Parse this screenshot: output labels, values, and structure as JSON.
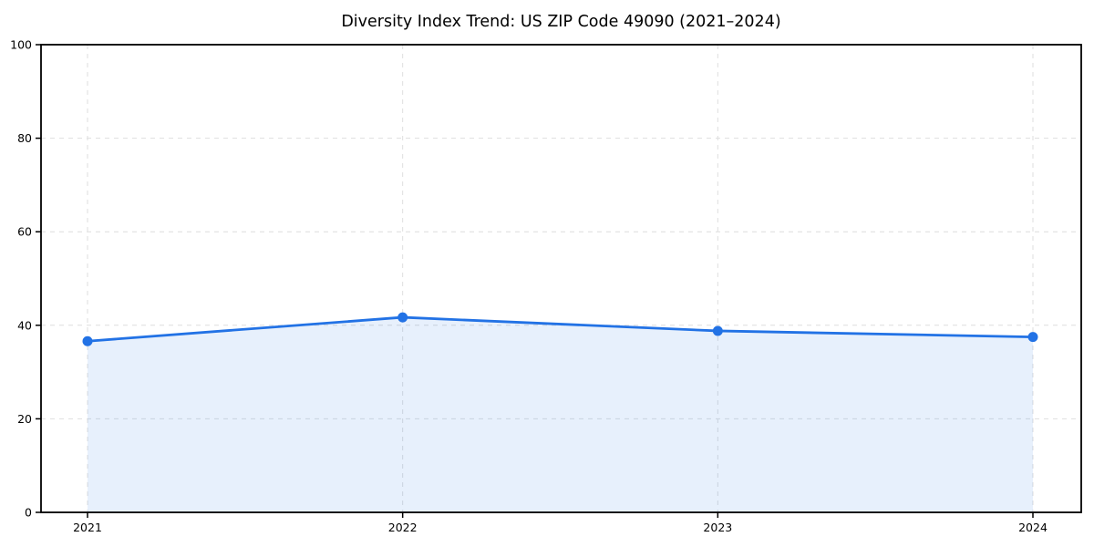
{
  "figure": {
    "background": "#ffffff"
  },
  "chart_data": {
    "type": "area",
    "title": "Diversity Index Trend: US ZIP Code 49090 (2021–2024)",
    "categories": [
      "2021",
      "2022",
      "2023",
      "2024"
    ],
    "series": [
      {
        "name": "Diversity Index",
        "values": [
          36.6,
          41.7,
          38.8,
          37.5
        ]
      }
    ],
    "xlabel": "",
    "ylabel": "",
    "ylim": [
      0,
      100
    ],
    "yticks": [
      0,
      20,
      40,
      60,
      80,
      100
    ],
    "grid": true,
    "grid_style": "dashed",
    "legend_position": "none",
    "colors": {
      "line": "#2272e5",
      "marker": "#2272e5",
      "fill": "#2272e5",
      "fill_opacity": 0.11,
      "grid": "#dedede",
      "axis": "#000000",
      "tick_text": "#000000",
      "title_text": "#000000"
    }
  }
}
